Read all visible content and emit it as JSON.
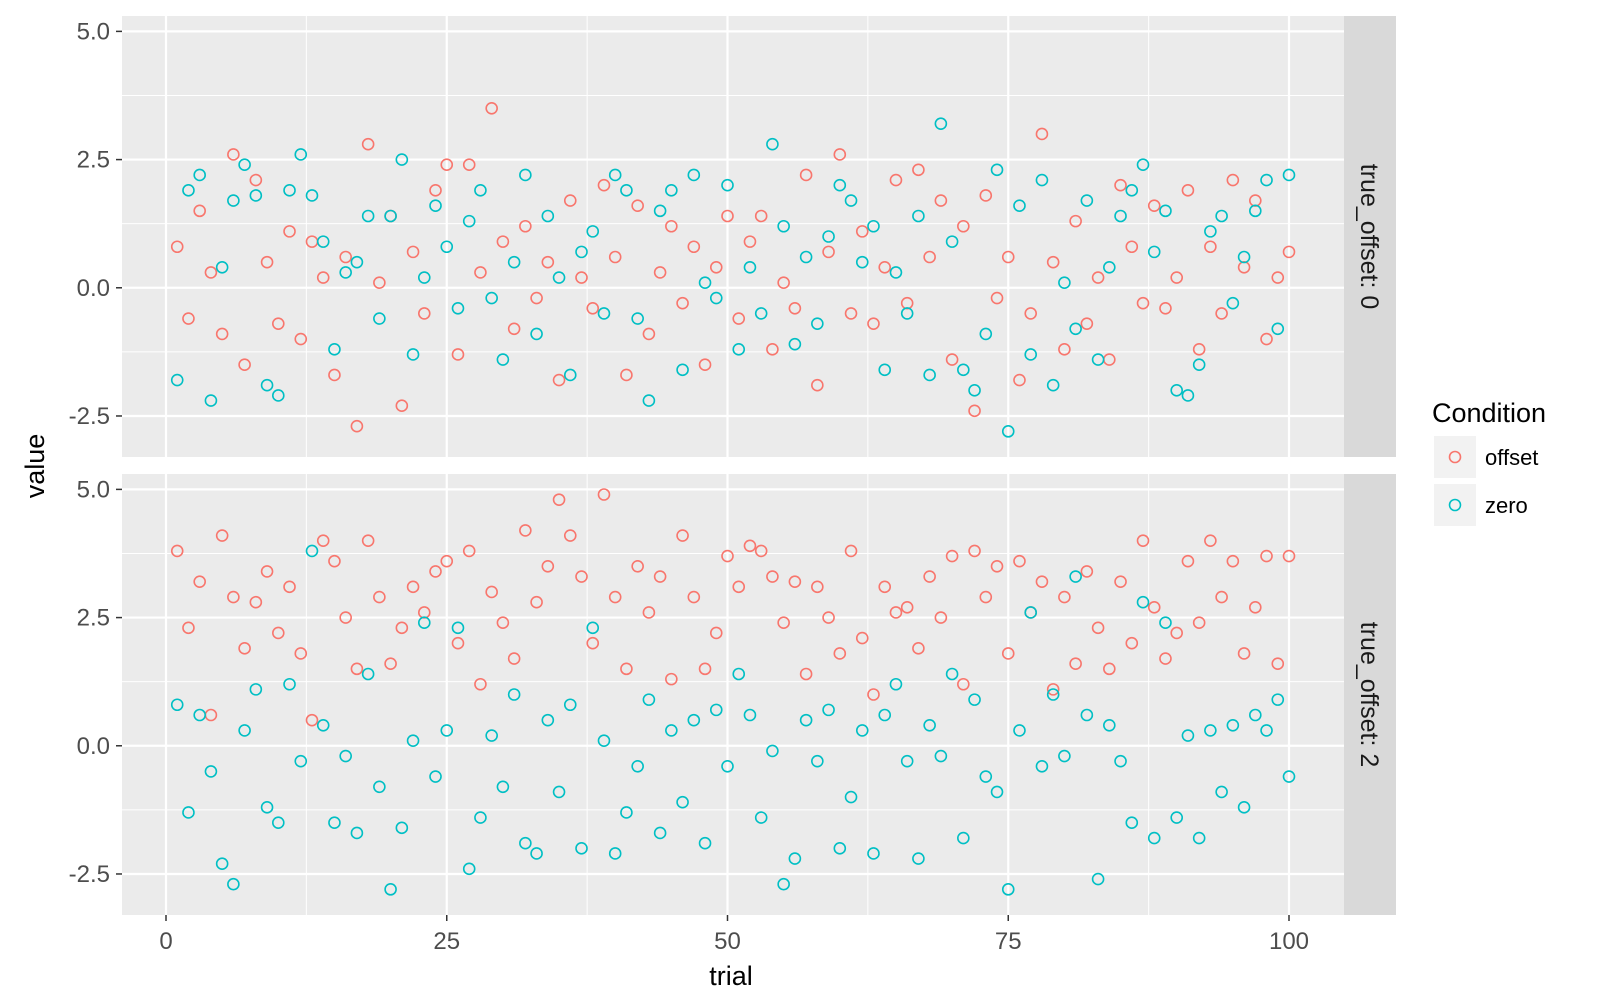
{
  "chart_data": {
    "type": "scatter",
    "faceted": true,
    "x_label": "trial",
    "y_label": "value",
    "x_range": [
      0,
      100
    ],
    "y_range": [
      -3.3,
      5.3
    ],
    "x_ticks": [
      0,
      25,
      50,
      75,
      100
    ],
    "x_tick_labels": [
      "0",
      "25",
      "50",
      "75",
      "100"
    ],
    "y_ticks": [
      -2.5,
      0,
      2.5,
      5
    ],
    "y_tick_labels": [
      "-2.5",
      "0.0",
      "2.5",
      "5.0"
    ],
    "grid": true,
    "legend": {
      "title": "Condition",
      "position": "right",
      "entries": [
        {
          "label": "offset",
          "color": "#F8766D"
        },
        {
          "label": "zero",
          "color": "#00BFC4"
        }
      ]
    },
    "panels": [
      {
        "strip": "true_offset: 0",
        "series": [
          {
            "name": "offset",
            "color": "#F8766D",
            "x": [
              1,
              2,
              3,
              4,
              5,
              6,
              7,
              8,
              9,
              10,
              11,
              12,
              13,
              14,
              15,
              16,
              17,
              18,
              19,
              20,
              21,
              22,
              23,
              24,
              25,
              26,
              27,
              28,
              29,
              30,
              31,
              32,
              33,
              34,
              35,
              36,
              37,
              38,
              39,
              40,
              41,
              42,
              43,
              44,
              45,
              46,
              47,
              48,
              49,
              50,
              51,
              52,
              53,
              54,
              55,
              56,
              57,
              58,
              59,
              60,
              61,
              62,
              63,
              64,
              65,
              66,
              67,
              68,
              69,
              70,
              71,
              72,
              73,
              74,
              75,
              76,
              77,
              78,
              79,
              80,
              81,
              82,
              83,
              84,
              85,
              86,
              87,
              88,
              89,
              90,
              91,
              92,
              93,
              94,
              95,
              96,
              97,
              98,
              99,
              100
            ],
            "y": [
              0.8,
              -0.6,
              1.5,
              0.3,
              -0.9,
              2.6,
              -1.5,
              2.1,
              0.5,
              -0.7,
              1.1,
              -1.0,
              0.9,
              0.2,
              -1.7,
              0.6,
              -2.7,
              2.8,
              0.1,
              1.4,
              -2.3,
              0.7,
              -0.5,
              1.9,
              2.4,
              -1.3,
              2.4,
              0.3,
              3.5,
              0.9,
              -0.8,
              1.2,
              -0.2,
              0.5,
              -1.8,
              1.7,
              0.2,
              -0.4,
              2.0,
              0.6,
              -1.7,
              1.6,
              -0.9,
              0.3,
              1.2,
              -0.3,
              0.8,
              -1.5,
              0.4,
              1.4,
              -0.6,
              0.9,
              1.4,
              -1.2,
              0.1,
              -0.4,
              2.2,
              -1.9,
              0.7,
              2.6,
              -0.5,
              1.1,
              -0.7,
              0.4,
              2.1,
              -0.3,
              2.3,
              0.6,
              1.7,
              -1.4,
              1.2,
              -2.4,
              1.8,
              -0.2,
              0.6,
              -1.8,
              -0.5,
              3.0,
              0.5,
              -1.2,
              1.3,
              -0.7,
              0.2,
              -1.4,
              2.0,
              0.8,
              -0.3,
              1.6,
              -0.4,
              0.2,
              1.9,
              -1.2,
              0.8,
              -0.5,
              2.1,
              0.4,
              1.7,
              -1.0,
              0.2,
              0.7
            ]
          },
          {
            "name": "zero",
            "color": "#00BFC4",
            "x": [
              1,
              2,
              3,
              4,
              5,
              6,
              7,
              8,
              9,
              10,
              11,
              12,
              13,
              14,
              15,
              16,
              17,
              18,
              19,
              20,
              21,
              22,
              23,
              24,
              25,
              26,
              27,
              28,
              29,
              30,
              31,
              32,
              33,
              34,
              35,
              36,
              37,
              38,
              39,
              40,
              41,
              42,
              43,
              44,
              45,
              46,
              47,
              48,
              49,
              50,
              51,
              52,
              53,
              54,
              55,
              56,
              57,
              58,
              59,
              60,
              61,
              62,
              63,
              64,
              65,
              66,
              67,
              68,
              69,
              70,
              71,
              72,
              73,
              74,
              75,
              76,
              77,
              78,
              79,
              80,
              81,
              82,
              83,
              84,
              85,
              86,
              87,
              88,
              89,
              90,
              91,
              92,
              93,
              94,
              95,
              96,
              97,
              98,
              99,
              100
            ],
            "y": [
              -1.8,
              1.9,
              2.2,
              -2.2,
              0.4,
              1.7,
              2.4,
              1.8,
              -1.9,
              -2.1,
              1.9,
              2.6,
              1.8,
              0.9,
              -1.2,
              0.3,
              0.5,
              1.4,
              -0.6,
              1.4,
              2.5,
              -1.3,
              0.2,
              1.6,
              0.8,
              -0.4,
              1.3,
              1.9,
              -0.2,
              -1.4,
              0.5,
              2.2,
              -0.9,
              1.4,
              0.2,
              -1.7,
              0.7,
              1.1,
              -0.5,
              2.2,
              1.9,
              -0.6,
              -2.2,
              1.5,
              1.9,
              -1.6,
              2.2,
              0.1,
              -0.2,
              2.0,
              -1.2,
              0.4,
              -0.5,
              2.8,
              1.2,
              -1.1,
              0.6,
              -0.7,
              1.0,
              2.0,
              1.7,
              0.5,
              1.2,
              -1.6,
              0.3,
              -0.5,
              1.4,
              -1.7,
              3.2,
              0.9,
              -1.6,
              -2.0,
              -0.9,
              2.3,
              -2.8,
              1.6,
              -1.3,
              2.1,
              -1.9,
              0.1,
              -0.8,
              1.7,
              -1.4,
              0.4,
              1.4,
              1.9,
              2.4,
              0.7,
              1.5,
              -2.0,
              -2.1,
              -1.5,
              1.1,
              1.4,
              -0.3,
              0.6,
              1.5,
              2.1,
              -0.8,
              2.2
            ]
          }
        ]
      },
      {
        "strip": "true_offset: 2",
        "series": [
          {
            "name": "offset",
            "color": "#F8766D",
            "x": [
              1,
              2,
              3,
              4,
              5,
              6,
              7,
              8,
              9,
              10,
              11,
              12,
              13,
              14,
              15,
              16,
              17,
              18,
              19,
              20,
              21,
              22,
              23,
              24,
              25,
              26,
              27,
              28,
              29,
              30,
              31,
              32,
              33,
              34,
              35,
              36,
              37,
              38,
              39,
              40,
              41,
              42,
              43,
              44,
              45,
              46,
              47,
              48,
              49,
              50,
              51,
              52,
              53,
              54,
              55,
              56,
              57,
              58,
              59,
              60,
              61,
              62,
              63,
              64,
              65,
              66,
              67,
              68,
              69,
              70,
              71,
              72,
              73,
              74,
              75,
              76,
              77,
              78,
              79,
              80,
              81,
              82,
              83,
              84,
              85,
              86,
              87,
              88,
              89,
              90,
              91,
              92,
              93,
              94,
              95,
              96,
              97,
              98,
              99,
              100
            ],
            "y": [
              3.8,
              2.3,
              3.2,
              0.6,
              4.1,
              2.9,
              1.9,
              2.8,
              3.4,
              2.2,
              3.1,
              1.8,
              0.5,
              4.0,
              3.6,
              2.5,
              1.5,
              4.0,
              2.9,
              1.6,
              2.3,
              3.1,
              2.6,
              3.4,
              3.6,
              2.0,
              3.8,
              1.2,
              3.0,
              2.4,
              1.7,
              4.2,
              2.8,
              3.5,
              4.8,
              4.1,
              3.3,
              2.0,
              4.9,
              2.9,
              1.5,
              3.5,
              2.6,
              3.3,
              1.3,
              4.1,
              2.9,
              1.5,
              2.2,
              3.7,
              3.1,
              3.9,
              3.8,
              3.3,
              2.4,
              3.2,
              1.4,
              3.1,
              2.5,
              1.8,
              3.8,
              2.1,
              1.0,
              3.1,
              2.6,
              2.7,
              1.9,
              3.3,
              2.5,
              3.7,
              1.2,
              3.8,
              2.9,
              3.5,
              1.8,
              3.6,
              2.6,
              3.2,
              1.1,
              2.9,
              1.6,
              3.4,
              2.3,
              1.5,
              3.2,
              2.0,
              4.0,
              2.7,
              1.7,
              2.2,
              3.6,
              2.4,
              4.0,
              2.9,
              3.6,
              1.8,
              2.7,
              3.7,
              1.6,
              3.7
            ]
          },
          {
            "name": "zero",
            "color": "#00BFC4",
            "x": [
              1,
              2,
              3,
              4,
              5,
              6,
              7,
              8,
              9,
              10,
              11,
              12,
              13,
              14,
              15,
              16,
              17,
              18,
              19,
              20,
              21,
              22,
              23,
              24,
              25,
              26,
              27,
              28,
              29,
              30,
              31,
              32,
              33,
              34,
              35,
              36,
              37,
              38,
              39,
              40,
              41,
              42,
              43,
              44,
              45,
              46,
              47,
              48,
              49,
              50,
              51,
              52,
              53,
              54,
              55,
              56,
              57,
              58,
              59,
              60,
              61,
              62,
              63,
              64,
              65,
              66,
              67,
              68,
              69,
              70,
              71,
              72,
              73,
              74,
              75,
              76,
              77,
              78,
              79,
              80,
              81,
              82,
              83,
              84,
              85,
              86,
              87,
              88,
              89,
              90,
              91,
              92,
              93,
              94,
              95,
              96,
              97,
              98,
              99,
              100
            ],
            "y": [
              0.8,
              -1.3,
              0.6,
              -0.5,
              -2.3,
              -2.7,
              0.3,
              1.1,
              -1.2,
              -1.5,
              1.2,
              -0.3,
              3.8,
              0.4,
              -1.5,
              -0.2,
              -1.7,
              1.4,
              -0.8,
              -2.8,
              -1.6,
              0.1,
              2.4,
              -0.6,
              0.3,
              2.3,
              -2.4,
              -1.4,
              0.2,
              -0.8,
              1.0,
              -1.9,
              -2.1,
              0.5,
              -0.9,
              0.8,
              -2.0,
              2.3,
              0.1,
              -2.1,
              -1.3,
              -0.4,
              0.9,
              -1.7,
              0.3,
              -1.1,
              0.5,
              -1.9,
              0.7,
              -0.4,
              1.4,
              0.6,
              -1.4,
              -0.1,
              -2.7,
              -2.2,
              0.5,
              -0.3,
              0.7,
              -2.0,
              -1.0,
              0.3,
              -2.1,
              0.6,
              1.2,
              -0.3,
              -2.2,
              0.4,
              -0.2,
              1.4,
              -1.8,
              0.9,
              -0.6,
              -0.9,
              -2.8,
              0.3,
              2.6,
              -0.4,
              1.0,
              -0.2,
              3.3,
              0.6,
              -2.6,
              0.4,
              -0.3,
              -1.5,
              2.8,
              -1.8,
              2.4,
              -1.4,
              0.2,
              -1.8,
              0.3,
              -0.9,
              0.4,
              -1.2,
              0.6,
              0.3,
              0.9,
              -0.6
            ]
          }
        ]
      }
    ]
  }
}
